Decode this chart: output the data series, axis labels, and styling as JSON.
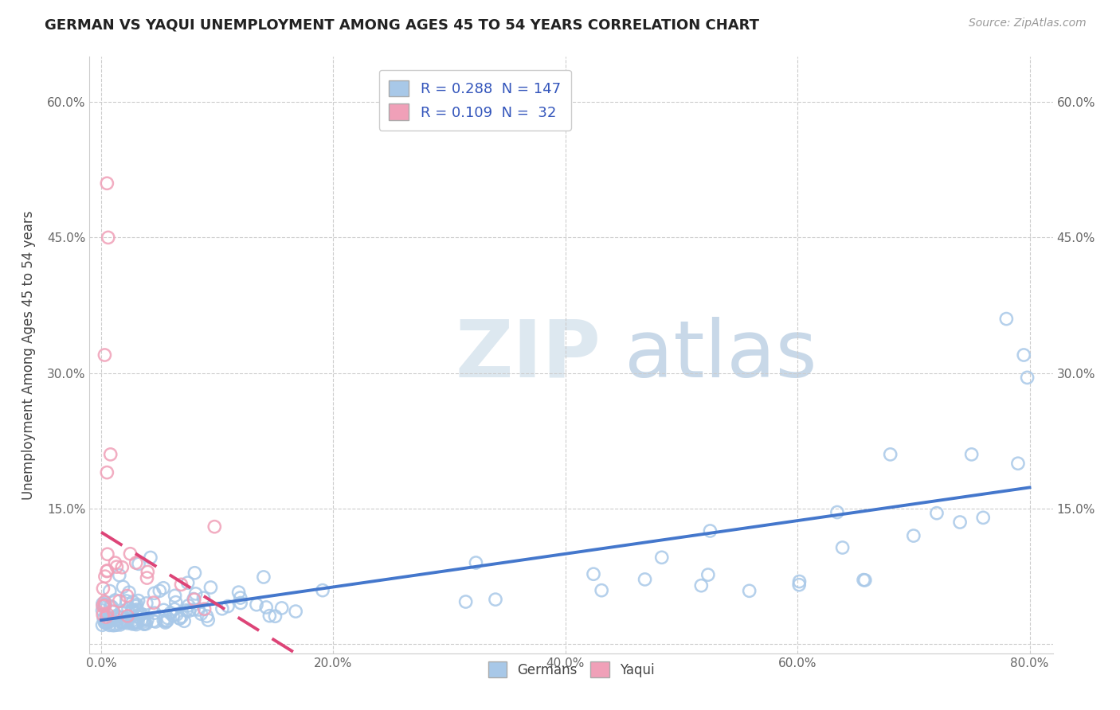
{
  "title": "GERMAN VS YAQUI UNEMPLOYMENT AMONG AGES 45 TO 54 YEARS CORRELATION CHART",
  "source": "Source: ZipAtlas.com",
  "ylabel": "Unemployment Among Ages 45 to 54 years",
  "xlim": [
    -0.01,
    0.82
  ],
  "ylim": [
    -0.01,
    0.65
  ],
  "xticks": [
    0.0,
    0.2,
    0.4,
    0.6,
    0.8
  ],
  "xticklabels": [
    "0.0%",
    "20.0%",
    "40.0%",
    "60.0%",
    "80.0%"
  ],
  "yticks": [
    0.0,
    0.15,
    0.3,
    0.45,
    0.6
  ],
  "yticklabels_left": [
    "",
    "15.0%",
    "30.0%",
    "45.0%",
    "60.0%"
  ],
  "yticklabels_right": [
    "",
    "15.0%",
    "30.0%",
    "45.0%",
    "60.0%"
  ],
  "german_R": 0.288,
  "german_N": 147,
  "yaqui_R": 0.109,
  "yaqui_N": 32,
  "german_color": "#a8c8e8",
  "yaqui_color": "#f0a0b8",
  "german_line_color": "#4477cc",
  "yaqui_line_color": "#dd4477",
  "legend_text_color": "#3355bb",
  "watermark_zip_color": "#dde8f0",
  "watermark_atlas_color": "#c8d8e8"
}
